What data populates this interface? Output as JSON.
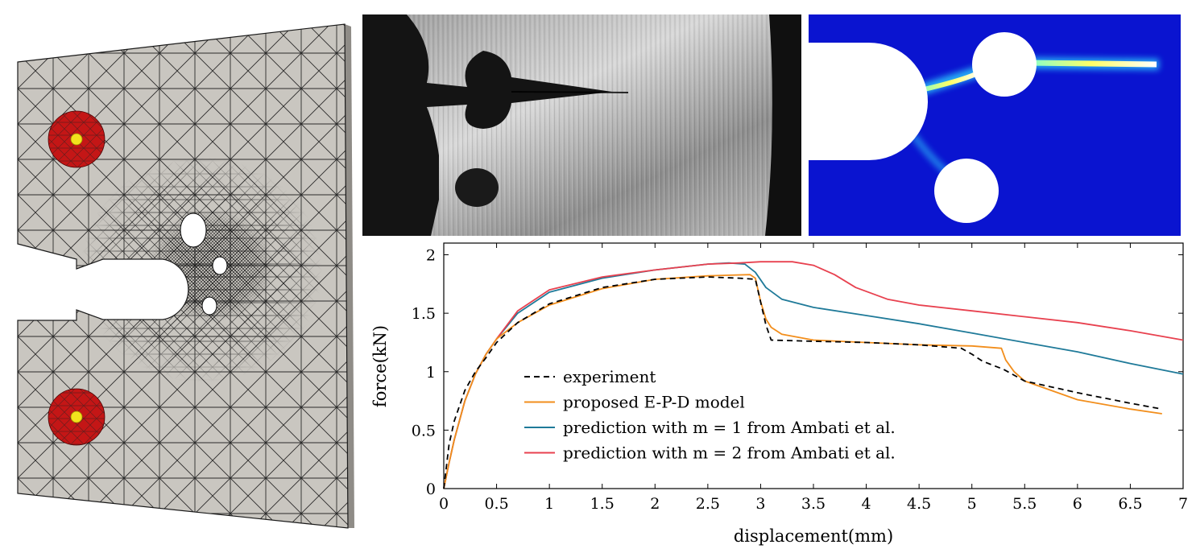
{
  "figure": {
    "panels": [
      "mesh-model",
      "experiment-photo",
      "phase-field-contour",
      "force-displacement-chart"
    ]
  },
  "colors": {
    "experiment": "#000000",
    "epd_model": "#f28e1c",
    "ambati_m1": "#1f7a99",
    "ambati_m2": "#e8414f",
    "mesh_fill": "#c9c6c0",
    "pin_region": "#c41616",
    "pin_center": "#f2e21d",
    "contour_background": "#0a14d0",
    "contour_crack": "#7fffd0"
  },
  "chart_data": {
    "type": "line",
    "xlabel": "displacement(mm)",
    "ylabel": "force(kN)",
    "xlim": [
      0,
      7
    ],
    "ylim": [
      0,
      2.1
    ],
    "xticks": [
      0,
      0.5,
      1,
      1.5,
      2,
      2.5,
      3,
      3.5,
      4,
      4.5,
      5,
      5.5,
      6,
      6.5,
      7
    ],
    "yticks": [
      0,
      0.5,
      1,
      1.5,
      2
    ],
    "xtick_labels": [
      "0",
      "0.5",
      "1",
      "1.5",
      "2",
      "2.5",
      "3",
      "3.5",
      "4",
      "4.5",
      "5",
      "5.5",
      "6",
      "6.5",
      "7"
    ],
    "ytick_labels": [
      "0",
      "0.5",
      "1",
      "1.5",
      "2"
    ],
    "grid": false,
    "legend_position": "lower-left",
    "series": [
      {
        "name": "experiment",
        "style": "dashed",
        "color_key": "experiment",
        "x": [
          0,
          0.05,
          0.1,
          0.2,
          0.3,
          0.4,
          0.5,
          0.7,
          1.0,
          1.5,
          2.0,
          2.5,
          2.8,
          2.95,
          3.05,
          3.1,
          3.5,
          4.0,
          4.5,
          4.9,
          5.0,
          5.1,
          5.3,
          5.5,
          6.0,
          6.5,
          6.8
        ],
        "y": [
          0,
          0.38,
          0.58,
          0.84,
          1.0,
          1.12,
          1.25,
          1.42,
          1.58,
          1.72,
          1.79,
          1.81,
          1.8,
          1.79,
          1.4,
          1.27,
          1.26,
          1.25,
          1.23,
          1.2,
          1.15,
          1.09,
          1.02,
          0.92,
          0.82,
          0.73,
          0.68
        ]
      },
      {
        "name": "proposed E-P-D model",
        "style": "solid",
        "color_key": "epd_model",
        "x": [
          0,
          0.05,
          0.1,
          0.2,
          0.3,
          0.4,
          0.5,
          0.7,
          1.0,
          1.5,
          2.0,
          2.5,
          2.9,
          2.95,
          3.0,
          3.05,
          3.1,
          3.2,
          3.5,
          4.0,
          4.5,
          5.0,
          5.28,
          5.32,
          5.4,
          5.5,
          6.0,
          6.5,
          6.8
        ],
        "y": [
          0,
          0.22,
          0.42,
          0.75,
          0.98,
          1.15,
          1.28,
          1.42,
          1.57,
          1.71,
          1.79,
          1.82,
          1.83,
          1.8,
          1.6,
          1.45,
          1.38,
          1.32,
          1.27,
          1.25,
          1.23,
          1.22,
          1.2,
          1.1,
          1.0,
          0.92,
          0.76,
          0.68,
          0.64
        ]
      },
      {
        "name": "prediction with m = 1 from Ambati et al.",
        "style": "solid",
        "color_key": "ambati_m1",
        "x": [
          0,
          0.05,
          0.1,
          0.2,
          0.3,
          0.4,
          0.5,
          0.7,
          1.0,
          1.5,
          2.0,
          2.5,
          2.7,
          2.85,
          2.95,
          3.05,
          3.2,
          3.5,
          4.0,
          4.5,
          5.0,
          5.5,
          6.0,
          6.5,
          7.0
        ],
        "y": [
          0,
          0.22,
          0.42,
          0.75,
          0.98,
          1.15,
          1.28,
          1.5,
          1.68,
          1.8,
          1.87,
          1.92,
          1.93,
          1.92,
          1.85,
          1.72,
          1.62,
          1.55,
          1.48,
          1.41,
          1.33,
          1.25,
          1.17,
          1.07,
          0.98
        ]
      },
      {
        "name": "prediction with m = 2 from Ambati et al.",
        "style": "solid",
        "color_key": "ambati_m2",
        "x": [
          0,
          0.05,
          0.1,
          0.2,
          0.3,
          0.4,
          0.5,
          0.7,
          1.0,
          1.5,
          2.0,
          2.5,
          2.8,
          3.0,
          3.3,
          3.5,
          3.7,
          3.9,
          4.2,
          4.5,
          5.0,
          5.5,
          6.0,
          6.5,
          7.0
        ],
        "y": [
          0,
          0.22,
          0.42,
          0.75,
          0.98,
          1.15,
          1.28,
          1.52,
          1.7,
          1.81,
          1.87,
          1.92,
          1.93,
          1.94,
          1.94,
          1.91,
          1.83,
          1.72,
          1.62,
          1.57,
          1.52,
          1.47,
          1.42,
          1.35,
          1.27
        ]
      }
    ]
  }
}
